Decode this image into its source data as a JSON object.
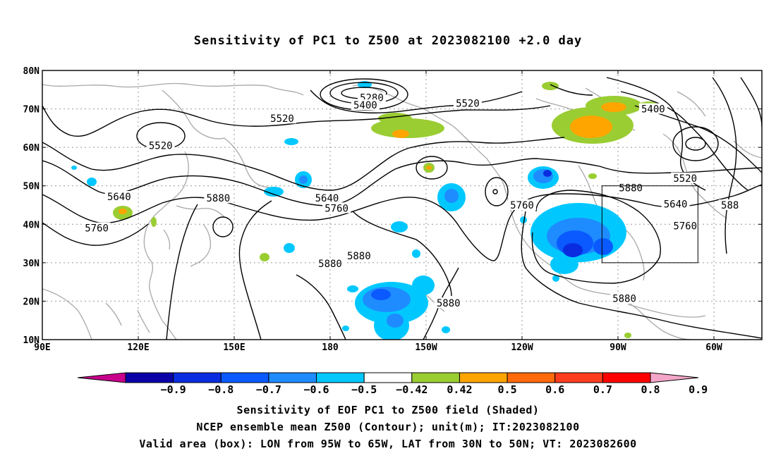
{
  "title": "Sensitivity of PC1 to Z500 at 2023082100 +2.0 day",
  "map": {
    "lat_ticks": [
      {
        "label": "80N",
        "lat": 80
      },
      {
        "label": "70N",
        "lat": 70
      },
      {
        "label": "60N",
        "lat": 60
      },
      {
        "label": "50N",
        "lat": 50
      },
      {
        "label": "40N",
        "lat": 40
      },
      {
        "label": "30N",
        "lat": 30
      },
      {
        "label": "20N",
        "lat": 20
      },
      {
        "label": "10N",
        "lat": 10
      }
    ],
    "lon_ticks": [
      {
        "label": "90E",
        "lon": 90
      },
      {
        "label": "120E",
        "lon": 120
      },
      {
        "label": "150E",
        "lon": 150
      },
      {
        "label": "180",
        "lon": 180
      },
      {
        "label": "150W",
        "lon": 210
      },
      {
        "label": "120W",
        "lon": 240
      },
      {
        "label": "90W",
        "lon": 270
      },
      {
        "label": "60W",
        "lon": 300
      }
    ],
    "contour_labels": [
      {
        "text": "5280",
        "lon": 193,
        "lat": 72.9
      },
      {
        "text": "5400",
        "lon": 191,
        "lat": 71.0
      },
      {
        "text": "5520",
        "lon": 223,
        "lat": 71.5
      },
      {
        "text": "5400",
        "lon": 281,
        "lat": 70.0
      },
      {
        "text": "5520",
        "lon": 165,
        "lat": 67.5
      },
      {
        "text": "5520",
        "lon": 127,
        "lat": 60.5
      },
      {
        "text": "5520",
        "lon": 291,
        "lat": 52.0
      },
      {
        "text": "5640",
        "lon": 114,
        "lat": 47.2
      },
      {
        "text": "5640",
        "lon": 179,
        "lat": 46.8
      },
      {
        "text": "5640",
        "lon": 288,
        "lat": 45.3
      },
      {
        "text": "5880",
        "lon": 145,
        "lat": 46.8
      },
      {
        "text": "5760",
        "lon": 182,
        "lat": 44.2
      },
      {
        "text": "5760",
        "lon": 240,
        "lat": 45.0
      },
      {
        "text": "5880",
        "lon": 274,
        "lat": 49.5
      },
      {
        "text": "5760",
        "lon": 107,
        "lat": 39.0
      },
      {
        "text": "5760",
        "lon": 291,
        "lat": 39.6
      },
      {
        "text": "5880",
        "lon": 180,
        "lat": 29.8
      },
      {
        "text": "5880",
        "lon": 189,
        "lat": 31.8
      },
      {
        "text": "5880",
        "lon": 217,
        "lat": 19.5
      },
      {
        "text": "5880",
        "lon": 272,
        "lat": 20.7
      },
      {
        "text": "588",
        "lon": 305,
        "lat": 45.0
      }
    ],
    "valid_box": {
      "lon_w": 265,
      "lon_e": 295,
      "lat_s": 30,
      "lat_n": 50
    }
  },
  "colorbar": {
    "colors": [
      "#c8008c",
      "#0a00a8",
      "#0a2ce0",
      "#0a5aff",
      "#1e8cff",
      "#00c8ff",
      "#ffffff",
      "#9acd32",
      "#ffa500",
      "#ff6a0a",
      "#ff3d1e",
      "#ff0000",
      "#f3a6c8"
    ],
    "labels": [
      "-0.9",
      "-0.8",
      "-0.7",
      "-0.6",
      "-0.5",
      "-0.42",
      "0.42",
      "0.5",
      "0.6",
      "0.7",
      "0.8",
      "0.9"
    ]
  },
  "captions": {
    "line1": "Sensitivity of EOF PC1 to Z500 field (Shaded)",
    "line2": "NCEP ensemble mean Z500 (Contour); unit(m); IT:2023082100",
    "line3": "Valid area (box): LON from 95W to 65W, LAT from 30N to 50N; VT: 2023082600"
  }
}
